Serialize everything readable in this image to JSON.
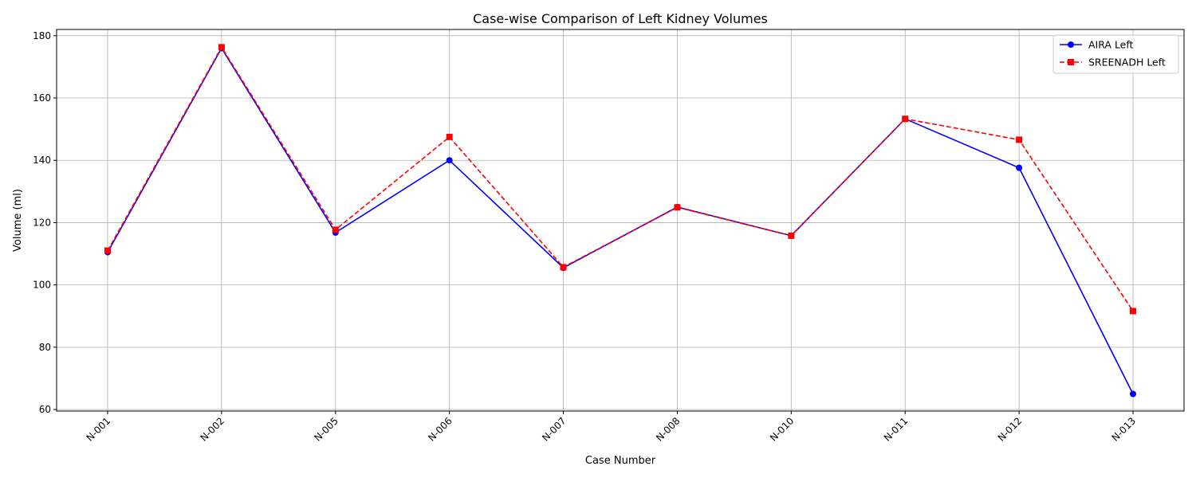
{
  "chart_data": {
    "type": "line",
    "title": "Case-wise Comparison of Left Kidney Volumes",
    "xlabel": "Case Number",
    "ylabel": "Volume (ml)",
    "categories": [
      "N-001",
      "N-002",
      "N-005",
      "N-006",
      "N-007",
      "N-008",
      "N-010",
      "N-011",
      "N-012",
      "N-013"
    ],
    "ylim": [
      59.5,
      182
    ],
    "yticks": [
      60,
      80,
      100,
      120,
      140,
      160,
      180
    ],
    "grid": true,
    "legend_position": "top-right",
    "series": [
      {
        "name": "AIRA Left",
        "color": "#0000ff",
        "line_style": "solid",
        "marker": "circle",
        "values": [
          110.5,
          176.0,
          116.8,
          140.0,
          105.5,
          125.0,
          115.8,
          153.3,
          137.6,
          65.0
        ]
      },
      {
        "name": "SREENADH Left",
        "color": "#ff0000",
        "line_style": "dashed",
        "marker": "square",
        "values": [
          111.0,
          176.3,
          117.7,
          147.5,
          105.7,
          124.9,
          115.8,
          153.3,
          146.6,
          91.6
        ]
      }
    ]
  }
}
